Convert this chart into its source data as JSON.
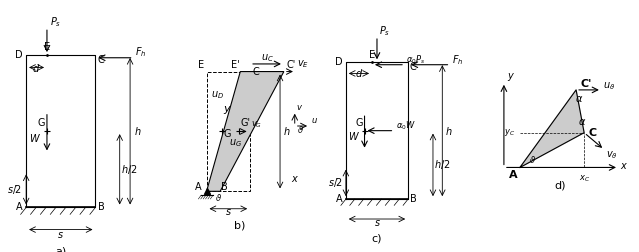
{
  "fig_width": 6.39,
  "fig_height": 2.52,
  "dpi": 100,
  "bg_color": "#ffffff",
  "wall_color": "#cccccc",
  "label_a": "a)",
  "label_b": "b)",
  "label_c": "c)",
  "label_d": "d)",
  "fs": 7,
  "fs_small": 6,
  "fs_label": 8
}
